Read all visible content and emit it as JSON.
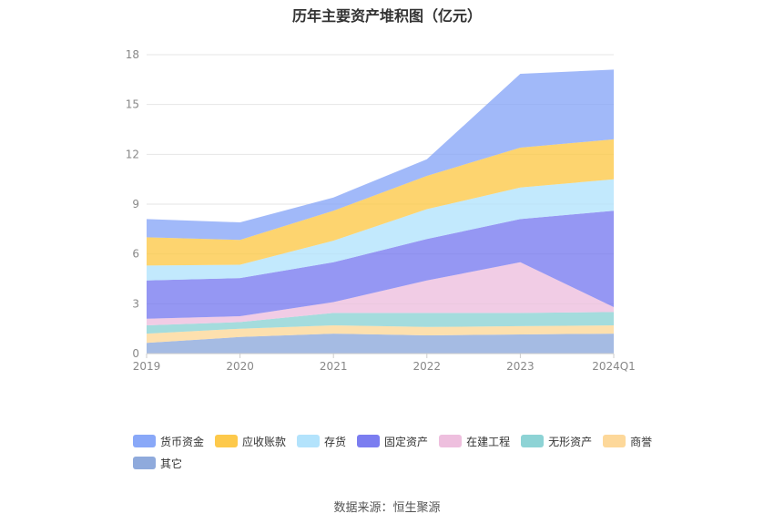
{
  "chart_data": {
    "type": "area",
    "stacked": true,
    "title": "历年主要资产堆积图（亿元）",
    "categories": [
      "2019",
      "2020",
      "2021",
      "2022",
      "2023",
      "2024Q1"
    ],
    "ylim": [
      0,
      18
    ],
    "yticks": [
      "0",
      "3",
      "6",
      "9",
      "12",
      "15",
      "18"
    ],
    "grid": true,
    "legend_position": "bottom",
    "series": [
      {
        "name": "其它",
        "color": "#8faadc",
        "values": [
          0.65,
          1.0,
          1.2,
          1.1,
          1.15,
          1.2
        ]
      },
      {
        "name": "商誉",
        "color": "#fdd89a",
        "values": [
          0.55,
          0.5,
          0.5,
          0.5,
          0.5,
          0.5
        ]
      },
      {
        "name": "无形资产",
        "color": "#8dd3d5",
        "values": [
          0.5,
          0.4,
          0.75,
          0.85,
          0.8,
          0.8
        ]
      },
      {
        "name": "在建工程",
        "color": "#eebfde",
        "values": [
          0.4,
          0.35,
          0.65,
          1.95,
          3.05,
          0.3
        ]
      },
      {
        "name": "固定资产",
        "color": "#7b7df0",
        "values": [
          2.3,
          2.3,
          2.4,
          2.5,
          2.6,
          5.8
        ]
      },
      {
        "name": "存货",
        "color": "#b3e3fc",
        "values": [
          0.9,
          0.8,
          1.3,
          1.8,
          1.9,
          1.9
        ]
      },
      {
        "name": "应收账款",
        "color": "#fdc94b",
        "values": [
          1.7,
          1.5,
          1.8,
          2.0,
          2.4,
          2.4
        ]
      },
      {
        "name": "货币资金",
        "color": "#89a8f8",
        "values": [
          1.1,
          1.05,
          0.8,
          1.0,
          4.45,
          4.2
        ]
      }
    ],
    "legend_order": [
      "货币资金",
      "应收账款",
      "存货",
      "固定资产",
      "在建工程",
      "无形资产",
      "商誉",
      "其它"
    ]
  },
  "source": "数据来源：恒生聚源"
}
